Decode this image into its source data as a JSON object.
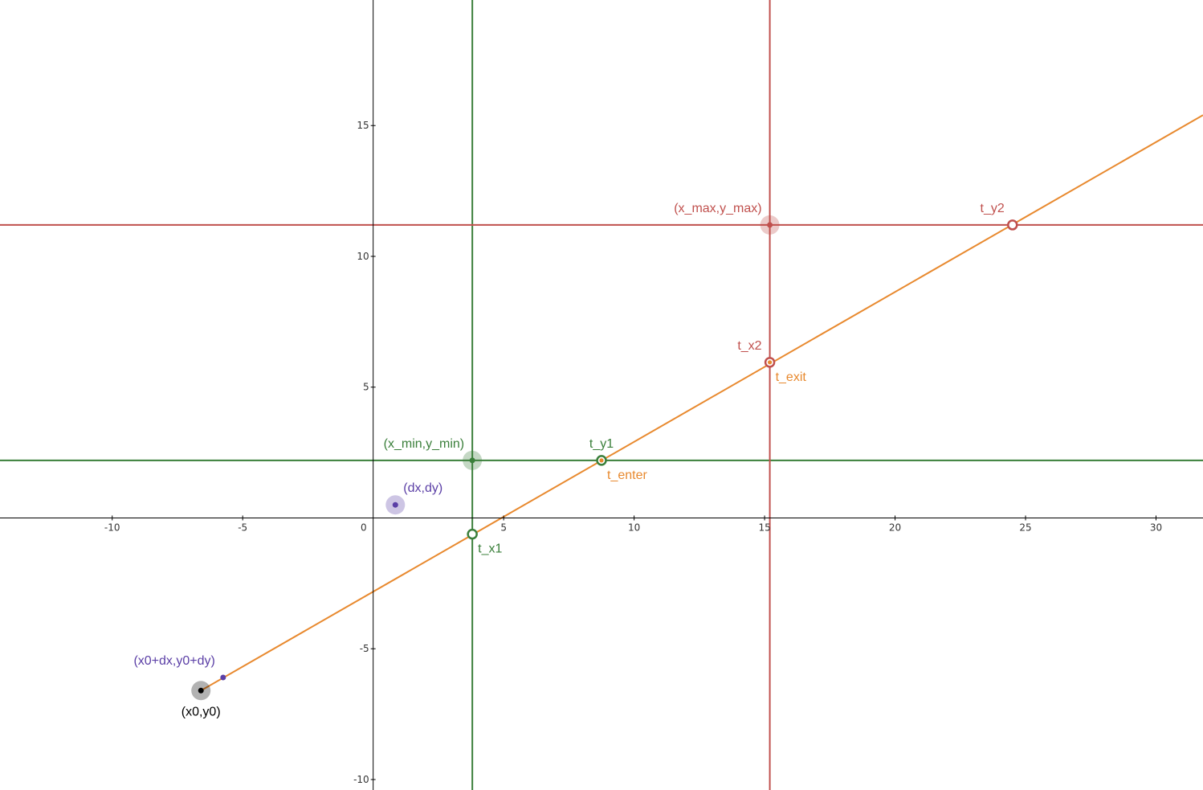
{
  "axes": {
    "x_range": [
      -14.3,
      31.8
    ],
    "y_range": [
      -10.4,
      19.8
    ],
    "x_ticks": [
      {
        "value": -10,
        "label": "-10"
      },
      {
        "value": -5,
        "label": "-5"
      },
      {
        "value": 5,
        "label": "5"
      },
      {
        "value": 10,
        "label": "10"
      },
      {
        "value": 15,
        "label": "15"
      },
      {
        "value": 20,
        "label": "20"
      },
      {
        "value": 25,
        "label": "25"
      },
      {
        "value": 30,
        "label": "30"
      }
    ],
    "y_ticks": [
      {
        "value": -10,
        "label": "-10"
      },
      {
        "value": -5,
        "label": "-5"
      },
      {
        "value": 5,
        "label": "5"
      },
      {
        "value": 10,
        "label": "10"
      },
      {
        "value": 15,
        "label": "15"
      }
    ],
    "origin_label": "0",
    "grid": false
  },
  "colors": {
    "segment": "#e8892e",
    "min_lines": "#3a7f3a",
    "max_lines": "#c0504d",
    "origin_point": "#000000",
    "direction": "#5b3fa6",
    "axis": "#000000"
  },
  "clip_box": {
    "x_min": 3.8,
    "y_min": 2.2,
    "x_max": 15.2,
    "y_max": 11.2
  },
  "segment": {
    "start": [
      -6.6,
      -6.6
    ],
    "end": [
      31.8,
      15.4
    ]
  },
  "points": [
    {
      "id": "x0y0",
      "x": -6.6,
      "y": -6.6,
      "label": "(x0,y0)",
      "color": "#000000",
      "style": "halo",
      "label_pos": "below"
    },
    {
      "id": "x0dx",
      "x": -5.75,
      "y": -6.1,
      "label": "(x0+dx,y0+dy)",
      "color": "#5b3fa6",
      "style": "small",
      "label_pos": "above-left"
    },
    {
      "id": "dxdy",
      "x": 0.85,
      "y": 0.5,
      "label": "(dx,dy)",
      "color": "#5b3fa6",
      "style": "halo",
      "label_pos": "above-right"
    },
    {
      "id": "xmin",
      "x": 3.8,
      "y": 2.2,
      "label": "(x_min,y_min)",
      "color": "#3a7f3a",
      "style": "halo",
      "label_pos": "above-left"
    },
    {
      "id": "xmax",
      "x": 15.2,
      "y": 11.2,
      "label": "(x_max,y_max)",
      "color": "#c0504d",
      "style": "halo",
      "label_pos": "above-left"
    },
    {
      "id": "tx1",
      "x": 3.8,
      "y": -0.62,
      "label": "t_x1",
      "color": "#3a7f3a",
      "style": "ring",
      "label_pos": "below-right"
    },
    {
      "id": "ty1",
      "x": 8.75,
      "y": 2.2,
      "label": "t_y1",
      "color": "#3a7f3a",
      "style": "ring",
      "label_pos": "above"
    },
    {
      "id": "tx2",
      "x": 15.2,
      "y": 5.95,
      "label": "t_x2",
      "color": "#c0504d",
      "style": "ring",
      "label_pos": "above-left"
    },
    {
      "id": "ty2",
      "x": 24.5,
      "y": 11.2,
      "label": "t_y2",
      "color": "#c0504d",
      "style": "ring",
      "label_pos": "above-left"
    }
  ],
  "markers": [
    {
      "id": "tenter",
      "x": 8.75,
      "y": 2.2,
      "label": "t_enter",
      "color": "#e8892e",
      "label_pos": "below-right"
    },
    {
      "id": "texit",
      "x": 15.2,
      "y": 5.95,
      "label": "t_exit",
      "color": "#e8892e",
      "label_pos": "below-right"
    }
  ]
}
